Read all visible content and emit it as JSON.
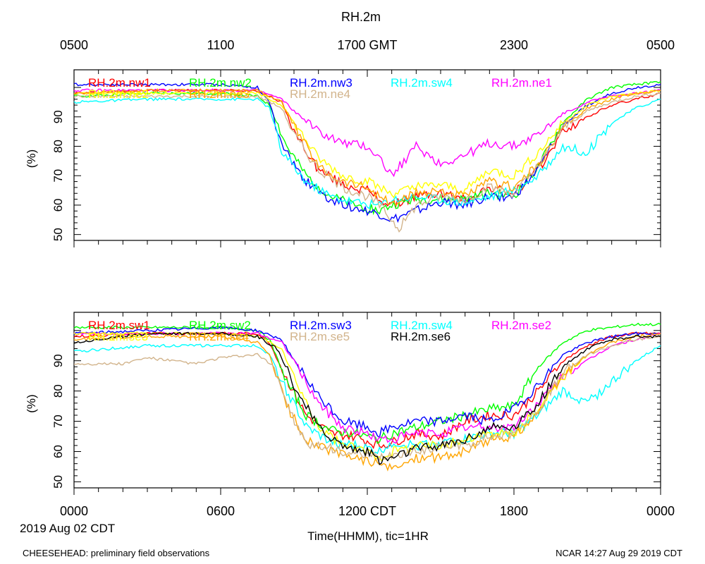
{
  "title": "RH.2m",
  "top_axis_ticks": [
    "0500",
    "1100",
    "1700 GMT",
    "2300",
    "0500"
  ],
  "bottom_axis_ticks": [
    "0000",
    "0600",
    "1200 CDT",
    "1800",
    "0000"
  ],
  "date_label": "2019 Aug 02 CDT",
  "xlabel": "Time(HHMM), tic=1HR",
  "footer_left": "CHEESEHEAD: preliminary field observations",
  "footer_right": "NCAR 14:27 Aug 29 2019 CDT",
  "chart_data": [
    {
      "type": "line",
      "panel": "top",
      "ylabel": "(%)",
      "xlim_hours": [
        0,
        24
      ],
      "ylim": [
        48,
        106
      ],
      "yticks": [
        50,
        60,
        70,
        80,
        90
      ],
      "grid": false,
      "legend": "top-left",
      "series": [
        {
          "name": "RH.2m.nw1",
          "color": "#ff0000",
          "x": [
            0,
            3,
            6,
            7.5,
            8.5,
            9,
            10,
            11,
            12,
            12.5,
            13,
            14,
            15,
            16,
            17,
            18,
            19,
            20,
            21,
            22,
            23,
            24
          ],
          "values": [
            98,
            99,
            99,
            99,
            95,
            85,
            72,
            67,
            65,
            62,
            60,
            63,
            64,
            62,
            66,
            64,
            72,
            85,
            90,
            94,
            96,
            98
          ]
        },
        {
          "name": "RH.2m.nw2",
          "color": "#00ff00",
          "x": [
            0,
            3,
            6,
            7.5,
            8,
            8.7,
            9.5,
            10.5,
            11.5,
            12.5,
            13,
            14,
            15,
            16,
            17,
            18,
            19,
            20,
            21,
            22,
            23,
            24
          ],
          "values": [
            97,
            98,
            98,
            97,
            94,
            80,
            70,
            63,
            60,
            58,
            60,
            62,
            62,
            62,
            64,
            63,
            73,
            88,
            96,
            100,
            101,
            102
          ]
        },
        {
          "name": "RH.2m.nw3",
          "color": "#0000ff",
          "x": [
            0,
            3,
            6,
            7.5,
            8,
            8.5,
            9.5,
            10.5,
            11.5,
            12.5,
            13,
            14,
            15,
            16,
            17,
            18,
            19,
            20,
            21,
            22,
            23,
            24
          ],
          "values": [
            101,
            101,
            101,
            100,
            95,
            80,
            68,
            62,
            59,
            57,
            55,
            58,
            61,
            60,
            63,
            63,
            72,
            87,
            94,
            98,
            100,
            101
          ]
        },
        {
          "name": "RH.2m.sw4",
          "color": "#00ffff",
          "x": [
            0,
            3,
            6,
            7.5,
            8,
            8.5,
            9.5,
            10.5,
            11.5,
            12.5,
            13,
            14,
            15,
            16,
            17,
            18,
            19,
            20,
            21,
            22,
            23,
            24
          ],
          "values": [
            95,
            96,
            96,
            96,
            93,
            78,
            68,
            63,
            61,
            60,
            62,
            63,
            62,
            61,
            63,
            65,
            70,
            80,
            78,
            88,
            93,
            96
          ]
        },
        {
          "name": "RH.2m.ne1",
          "color": "#ff00ff",
          "x": [
            0,
            3,
            6,
            7.5,
            8.5,
            9,
            10,
            11,
            12,
            12.5,
            13,
            14,
            15,
            16,
            17,
            18,
            19,
            20,
            21,
            22,
            23,
            24
          ],
          "values": [
            99,
            99,
            99,
            99,
            96,
            92,
            85,
            81,
            80,
            76,
            70,
            80,
            74,
            77,
            81,
            80,
            84,
            91,
            95,
            97,
            98,
            99
          ]
        },
        {
          "name": "RH.2m.ne2",
          "color": "#ffff00",
          "x": [
            0,
            3,
            6,
            7.5,
            8.5,
            9,
            10,
            11,
            12,
            12.5,
            13,
            14,
            15,
            16,
            17,
            18,
            19,
            20,
            21,
            22,
            23,
            24
          ],
          "values": [
            98,
            98,
            98,
            98,
            94,
            88,
            76,
            70,
            68,
            66,
            64,
            66,
            67,
            65,
            72,
            70,
            78,
            88,
            94,
            97,
            98,
            99
          ]
        },
        {
          "name": "RH.2m.ne3",
          "color": "#ffa500",
          "x": [
            0,
            3,
            6,
            7.5,
            8.5,
            9,
            10,
            11,
            12,
            12.5,
            13,
            14,
            15,
            16,
            17,
            18,
            19,
            20,
            21,
            22,
            23,
            24
          ],
          "values": [
            98,
            99,
            99,
            99,
            95,
            87,
            73,
            68,
            66,
            63,
            60,
            64,
            65,
            63,
            68,
            66,
            74,
            86,
            93,
            96,
            98,
            99
          ]
        },
        {
          "name": "RH.2m.ne4",
          "color": "#d2b48c",
          "x": [
            0,
            3,
            6,
            7.5,
            8.5,
            9,
            10,
            11,
            12,
            12.5,
            13,
            13.3,
            14,
            15,
            16,
            17,
            18,
            19,
            20,
            21,
            22,
            23,
            24
          ],
          "values": [
            97,
            97,
            97,
            97,
            93,
            84,
            72,
            66,
            63,
            60,
            55,
            52,
            60,
            63,
            62,
            66,
            64,
            73,
            86,
            92,
            95,
            97,
            98
          ]
        }
      ]
    },
    {
      "type": "line",
      "panel": "bottom",
      "ylabel": "(%)",
      "xlim_hours": [
        0,
        24
      ],
      "ylim": [
        48,
        106
      ],
      "yticks": [
        50,
        60,
        70,
        80,
        90
      ],
      "grid": false,
      "legend": "top-left",
      "series": [
        {
          "name": "RH.2m.sw1",
          "color": "#ff0000",
          "x": [
            0,
            3,
            6,
            7.5,
            8,
            8.7,
            9.5,
            10.5,
            11.5,
            12.5,
            13,
            14,
            15,
            16,
            17,
            18,
            19,
            20,
            21,
            22,
            23,
            24
          ],
          "values": [
            98,
            99,
            99,
            99,
            96,
            84,
            72,
            66,
            65,
            62,
            63,
            66,
            65,
            70,
            72,
            72,
            80,
            90,
            95,
            98,
            99,
            99
          ]
        },
        {
          "name": "RH.2m.sw2",
          "color": "#00ff00",
          "x": [
            0,
            3,
            6,
            7.5,
            8,
            8.7,
            9.5,
            10.5,
            11.5,
            12.5,
            13,
            14,
            15,
            16,
            17,
            18,
            19,
            20,
            21,
            22,
            23,
            24
          ],
          "values": [
            101,
            101,
            101,
            100,
            97,
            83,
            72,
            67,
            66,
            64,
            66,
            68,
            70,
            72,
            74,
            75,
            88,
            96,
            100,
            101,
            102,
            102
          ]
        },
        {
          "name": "RH.2m.sw3",
          "color": "#0000ff",
          "x": [
            0,
            3,
            6,
            7.5,
            8.5,
            9,
            10,
            11,
            12,
            12.5,
            13,
            14,
            15,
            16,
            17,
            18,
            19,
            20,
            21,
            22,
            23,
            24
          ],
          "values": [
            99,
            100,
            101,
            100,
            97,
            90,
            78,
            70,
            68,
            66,
            68,
            70,
            70,
            72,
            70,
            74,
            82,
            92,
            96,
            98,
            99,
            99
          ]
        },
        {
          "name": "RH.2m.sw4",
          "color": "#00ffff",
          "x": [
            0,
            3,
            6,
            7.5,
            8,
            8.7,
            9.5,
            10.5,
            11.5,
            12.5,
            13,
            14,
            15,
            16,
            17,
            18,
            19,
            20,
            21,
            22,
            23,
            24
          ],
          "values": [
            93,
            95,
            95,
            95,
            92,
            80,
            68,
            63,
            62,
            60,
            63,
            62,
            63,
            64,
            66,
            66,
            72,
            80,
            76,
            83,
            90,
            95
          ]
        },
        {
          "name": "RH.2m.se2",
          "color": "#ff00ff",
          "x": [
            0,
            3,
            6,
            7.5,
            8.5,
            9,
            10,
            11,
            12,
            12.5,
            13,
            14,
            15,
            16,
            17,
            18,
            19,
            20,
            21,
            22,
            23,
            24
          ],
          "values": [
            99,
            99,
            99,
            99,
            96,
            90,
            76,
            68,
            66,
            64,
            64,
            66,
            66,
            68,
            68,
            68,
            76,
            85,
            90,
            95,
            97,
            99
          ]
        },
        {
          "name": "RH.2m.se3",
          "color": "#ffff00",
          "x": [
            0,
            3,
            6,
            7.5,
            8.5,
            9,
            10,
            11,
            12,
            12.5,
            13,
            14,
            15,
            16,
            17,
            18,
            19,
            20,
            21
          ],
          "values": [
            99,
            99,
            99,
            98,
            94,
            84,
            68,
            62,
            60,
            58,
            60,
            62,
            62,
            64,
            66,
            66,
            74,
            84,
            92
          ]
        },
        {
          "name": "RH.2m.se4",
          "color": "#ffa500",
          "x": [
            0,
            3,
            6,
            7.5,
            8,
            8.7,
            9.5,
            10.5,
            11.5,
            12.5,
            13,
            14,
            15,
            16,
            17,
            18,
            19,
            20,
            21,
            22,
            23,
            24
          ],
          "values": [
            97,
            98,
            98,
            96,
            92,
            75,
            64,
            60,
            58,
            56,
            54,
            58,
            58,
            60,
            64,
            65,
            73,
            85,
            92,
            96,
            98,
            99
          ]
        },
        {
          "name": "RH.2m.se5",
          "color": "#d2b48c",
          "x": [
            0,
            2,
            3,
            5,
            6,
            7.5,
            8.2,
            8.7,
            9.5,
            10.5,
            11.5,
            12.5,
            13,
            14,
            15,
            16,
            17,
            18,
            19,
            20,
            21,
            22,
            23,
            24
          ],
          "values": [
            89,
            89,
            91,
            89,
            91,
            92,
            88,
            76,
            62,
            61,
            59,
            58,
            59,
            60,
            62,
            62,
            65,
            66,
            74,
            86,
            92,
            95,
            97,
            98
          ]
        },
        {
          "name": "RH.2m.se6",
          "color": "#000000",
          "x": [
            0,
            3,
            6,
            7.5,
            8.3,
            9,
            10,
            11,
            12,
            12.5,
            13,
            14,
            15,
            16,
            17,
            18,
            19,
            20,
            21,
            22,
            23,
            24
          ],
          "values": [
            96,
            99,
            99,
            98,
            94,
            82,
            68,
            62,
            60,
            57,
            58,
            61,
            62,
            64,
            68,
            68,
            76,
            88,
            94,
            97,
            98,
            98
          ]
        }
      ]
    }
  ]
}
